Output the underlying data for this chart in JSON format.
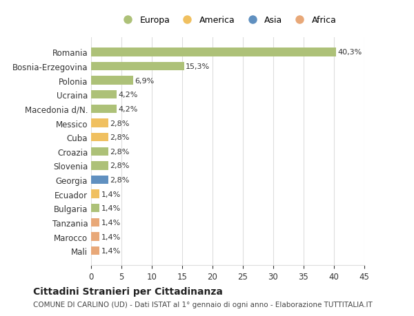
{
  "categories": [
    "Romania",
    "Bosnia-Erzegovina",
    "Polonia",
    "Ucraina",
    "Macedonia d/N.",
    "Messico",
    "Cuba",
    "Croazia",
    "Slovenia",
    "Georgia",
    "Ecuador",
    "Bulgaria",
    "Tanzania",
    "Marocco",
    "Mali"
  ],
  "values": [
    40.3,
    15.3,
    6.9,
    4.2,
    4.2,
    2.8,
    2.8,
    2.8,
    2.8,
    2.8,
    1.4,
    1.4,
    1.4,
    1.4,
    1.4
  ],
  "labels": [
    "40,3%",
    "15,3%",
    "6,9%",
    "4,2%",
    "4,2%",
    "2,8%",
    "2,8%",
    "2,8%",
    "2,8%",
    "2,8%",
    "1,4%",
    "1,4%",
    "1,4%",
    "1,4%",
    "1,4%"
  ],
  "bar_colors": [
    "#adc178",
    "#adc178",
    "#adc178",
    "#adc178",
    "#adc178",
    "#f0c060",
    "#f0c060",
    "#adc178",
    "#adc178",
    "#6090c0",
    "#f0c060",
    "#adc178",
    "#e8a878",
    "#e8a878",
    "#e8a878"
  ],
  "legend_labels": [
    "Europa",
    "America",
    "Asia",
    "Africa"
  ],
  "legend_colors": [
    "#adc178",
    "#f0c060",
    "#6090c0",
    "#e8a878"
  ],
  "title": "Cittadini Stranieri per Cittadinanza",
  "subtitle": "COMUNE DI CARLINO (UD) - Dati ISTAT al 1° gennaio di ogni anno - Elaborazione TUTTITALIA.IT",
  "xlim": [
    0,
    45
  ],
  "xticks": [
    0,
    5,
    10,
    15,
    20,
    25,
    30,
    35,
    40,
    45
  ],
  "background_color": "#ffffff",
  "grid_color": "#dddddd"
}
